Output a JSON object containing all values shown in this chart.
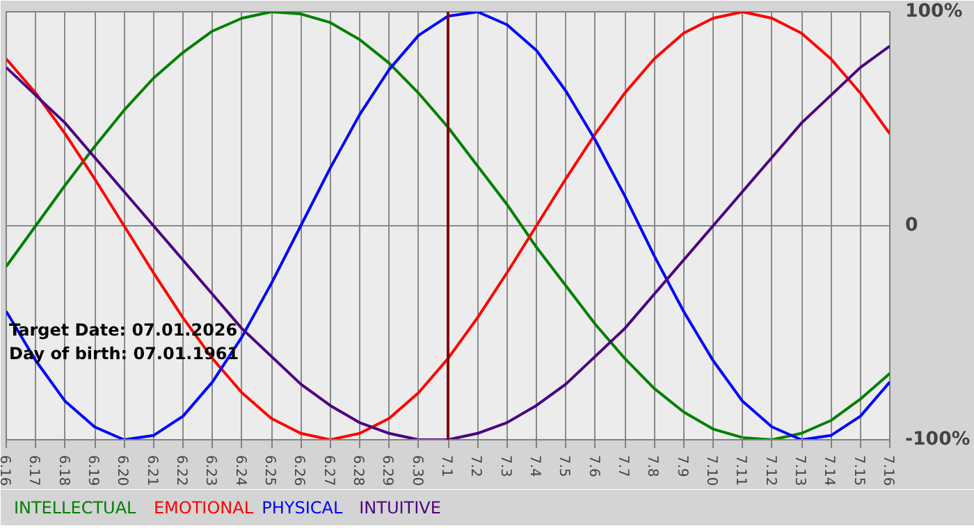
{
  "chart_data": {
    "type": "line",
    "categories": [
      "6.16",
      "6.17",
      "6.18",
      "6.19",
      "6.20",
      "6.21",
      "6.22",
      "6.23",
      "6.24",
      "6.25",
      "6.26",
      "6.27",
      "6.28",
      "6.29",
      "6.30",
      "7.1",
      "7.2",
      "7.3",
      "7.4",
      "7.5",
      "7.6",
      "7.7",
      "7.8",
      "7.9",
      "7.10",
      "7.11",
      "7.12",
      "7.13",
      "7.14",
      "7.15",
      "7.16"
    ],
    "series": [
      {
        "name": "INTELLECTUAL",
        "color": "#008000",
        "values": [
          -19,
          0,
          19,
          37,
          54,
          69,
          81,
          91,
          97,
          100,
          99,
          95,
          87,
          76,
          62,
          46,
          28,
          10,
          -10,
          -28,
          -46,
          -62,
          -76,
          -87,
          -95,
          -99,
          -100,
          -97,
          -91,
          -81,
          -69
        ]
      },
      {
        "name": "EMOTIONAL",
        "color": "#ff0000",
        "values": [
          78,
          62,
          43,
          22,
          0,
          -22,
          -43,
          -62,
          -78,
          -90,
          -97,
          -100,
          -97,
          -90,
          -78,
          -62,
          -43,
          -22,
          0,
          22,
          43,
          62,
          78,
          90,
          97,
          100,
          97,
          90,
          78,
          62,
          43
        ]
      },
      {
        "name": "PHYSICAL",
        "color": "#0000ff",
        "values": [
          -40,
          -63,
          -82,
          -94,
          -100,
          -98,
          -89,
          -73,
          -52,
          -27,
          0,
          27,
          52,
          73,
          89,
          98,
          100,
          94,
          82,
          63,
          40,
          14,
          -14,
          -40,
          -63,
          -82,
          -94,
          -100,
          -98,
          -89,
          -73
        ]
      },
      {
        "name": "INTUITIVE",
        "color": "#4b0082",
        "values": [
          74,
          61,
          48,
          32,
          16,
          0,
          -16,
          -32,
          -48,
          -61,
          -74,
          -84,
          -92,
          -97,
          -100,
          -100,
          -97,
          -92,
          -84,
          -74,
          -61,
          -48,
          -32,
          -16,
          0,
          16,
          32,
          48,
          61,
          74,
          84
        ]
      }
    ],
    "ylim": [
      -100,
      100
    ],
    "yticks": [
      {
        "value": 100,
        "label": "100%"
      },
      0,
      {
        "value": -100,
        "label": "-100%"
      }
    ],
    "ref_lines": [
      {
        "axis": "x",
        "value": "7.1",
        "label": null,
        "color": "#800000"
      }
    ],
    "annotations": [
      "Target Date: 07.01.2026",
      "Day of birth: 07.01.1961"
    ],
    "grid": true,
    "line_style": "solid"
  }
}
